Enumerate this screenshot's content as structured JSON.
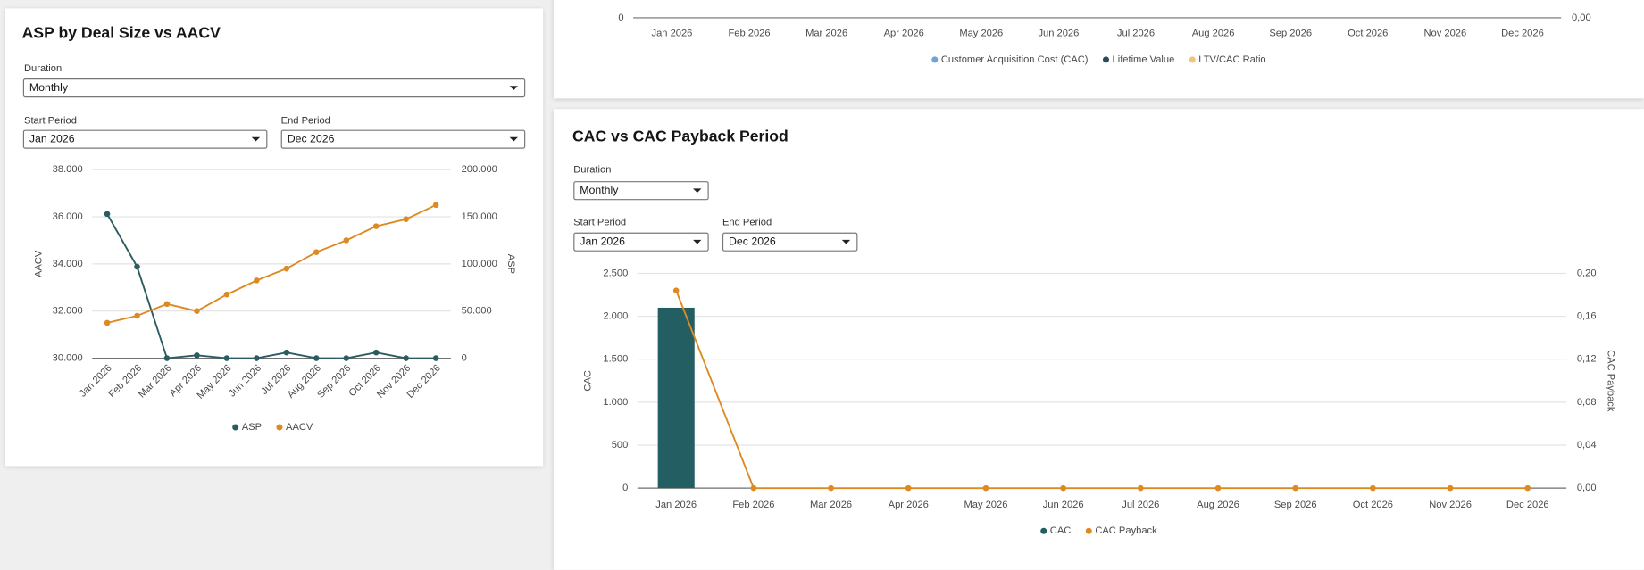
{
  "chart_data": [
    {
      "type": "combo",
      "title": "ASP by Deal Size vs AACV",
      "controls": [
        {
          "label": "Duration",
          "value": "Monthly"
        },
        {
          "label": "Start Period",
          "value": "Jan 2026"
        },
        {
          "label": "End Period",
          "value": "Dec 2026"
        }
      ],
      "categories": [
        "Jan 2026",
        "Feb 2026",
        "Mar 2026",
        "Apr 2026",
        "May 2026",
        "Jun 2026",
        "Jul 2026",
        "Aug 2026",
        "Sep 2026",
        "Oct 2026",
        "Nov 2026",
        "Dec 2026"
      ],
      "ylabel": "AACV",
      "y2label": "ASP",
      "ylim": [
        30000,
        38000
      ],
      "yticks": [
        {
          "value": 30000,
          "label": "30.000"
        },
        {
          "value": 32000,
          "label": "32.000"
        },
        {
          "value": 34000,
          "label": "34.000"
        },
        {
          "value": 36000,
          "label": "36.000"
        },
        {
          "value": 38000,
          "label": "38.000"
        }
      ],
      "y2lim": [
        0,
        200000
      ],
      "y2ticks": [
        0,
        {
          "value": 50000,
          "label": "50.000"
        },
        {
          "value": 100000,
          "label": "100.000"
        },
        {
          "value": 150000,
          "label": "150.000"
        },
        {
          "value": 200000,
          "label": "200.000"
        }
      ],
      "grid": true,
      "series": [
        {
          "name": "ASP",
          "type": "line",
          "axis": "y2",
          "color": "#2a5c62",
          "values": [
            153000,
            97000,
            0,
            3000,
            0,
            0,
            6000,
            0,
            0,
            6000,
            0,
            0
          ]
        },
        {
          "name": "AACV",
          "type": "line",
          "color": "#de8a22",
          "values": [
            31500,
            31800,
            32300,
            32000,
            32700,
            33300,
            33800,
            34500,
            35000,
            35600,
            35900,
            36500
          ]
        }
      ]
    },
    {
      "type": "combo",
      "categories": [
        "Jan 2026",
        "Feb 2026",
        "Mar 2026",
        "Apr 2026",
        "May 2026",
        "Jun 2026",
        "Jul 2026",
        "Aug 2026",
        "Sep 2026",
        "Oct 2026",
        "Nov 2026",
        "Dec 2026"
      ],
      "yticks": [
        0
      ],
      "y2ticks": [
        {
          "value": 0,
          "label": "0,00"
        }
      ],
      "legend": [
        {
          "name": "Customer Acquisition Cost (CAC)",
          "color": "#6fa4d4"
        },
        {
          "name": "Lifetime Value",
          "color": "#2c4a5e"
        },
        {
          "name": "LTV/CAC Ratio",
          "color": "#f3c47a"
        }
      ]
    },
    {
      "type": "combo",
      "title": "CAC vs CAC Payback Period",
      "controls": [
        {
          "label": "Duration",
          "value": "Monthly"
        },
        {
          "label": "Start Period",
          "value": "Jan 2026"
        },
        {
          "label": "End Period",
          "value": "Dec 2026"
        }
      ],
      "categories": [
        "Jan 2026",
        "Feb 2026",
        "Mar 2026",
        "Apr 2026",
        "May 2026",
        "Jun 2026",
        "Jul 2026",
        "Aug 2026",
        "Sep 2026",
        "Oct 2026",
        "Nov 2026",
        "Dec 2026"
      ],
      "ylabel": "CAC",
      "y2label": "CAC Payback",
      "ylim": [
        0,
        2500
      ],
      "yticks": [
        0,
        500,
        {
          "value": 1000,
          "label": "1.000"
        },
        {
          "value": 1500,
          "label": "1.500"
        },
        {
          "value": 2000,
          "label": "2.000"
        },
        {
          "value": 2500,
          "label": "2.500"
        }
      ],
      "y2lim": [
        0,
        0.2
      ],
      "y2ticks": [
        {
          "value": 0,
          "label": "0,00"
        },
        {
          "value": 0.04,
          "label": "0,04"
        },
        {
          "value": 0.08,
          "label": "0,08"
        },
        {
          "value": 0.12,
          "label": "0,12"
        },
        {
          "value": 0.16,
          "label": "0,16"
        },
        {
          "value": 0.2,
          "label": "0,20"
        }
      ],
      "grid": true,
      "series": [
        {
          "name": "CAC",
          "type": "bar",
          "color": "#235e63",
          "values": [
            2100,
            0,
            0,
            0,
            0,
            0,
            0,
            0,
            0,
            0,
            0,
            0
          ]
        },
        {
          "name": "CAC Payback",
          "type": "line",
          "axis": "y2",
          "color": "#de8a22",
          "values": [
            0.184,
            0,
            0,
            0,
            0,
            0,
            0,
            0,
            0,
            0,
            0,
            0
          ]
        }
      ]
    }
  ]
}
